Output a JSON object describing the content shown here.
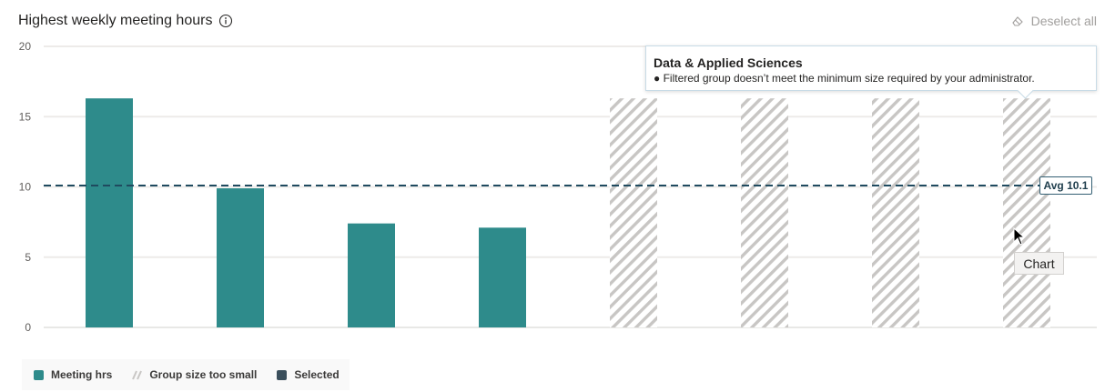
{
  "header": {
    "title": "Highest weekly meeting hours",
    "deselect_label": "Deselect all"
  },
  "tooltip": {
    "title": "Data & Applied Sciences",
    "text": "● Filtered group doesn’t meet the minimum size required by your administrator."
  },
  "avg_label": "Avg 10.1",
  "hover_tip": "Chart",
  "legend": [
    {
      "label": "Meeting hrs",
      "color": "#2e8b8b",
      "pattern": "solid"
    },
    {
      "label": "Group size too small",
      "color": "#c8c6c4",
      "pattern": "hatched"
    },
    {
      "label": "Selected",
      "color": "#3b4f5c",
      "pattern": "solid"
    }
  ],
  "chart_data": {
    "type": "bar",
    "title": "Highest weekly meeting hours",
    "xlabel": "",
    "ylabel": "",
    "ylim": [
      0,
      20
    ],
    "yticks": [
      0,
      5,
      10,
      15,
      20
    ],
    "grid": true,
    "legend_position": "bottom-left",
    "bars": [
      {
        "value": 16.3,
        "status": "meeting"
      },
      {
        "value": 9.9,
        "status": "meeting"
      },
      {
        "value": 7.4,
        "status": "meeting"
      },
      {
        "value": 7.1,
        "status": "meeting"
      },
      {
        "value": 16.3,
        "status": "too_small"
      },
      {
        "value": 16.3,
        "status": "too_small"
      },
      {
        "value": 16.3,
        "status": "too_small"
      },
      {
        "value": 16.3,
        "status": "too_small"
      }
    ],
    "average": 10.1,
    "colors": {
      "meeting": "#2e8b8b",
      "too_small": "#c8c6c4",
      "avg_line": "#1f4a5f"
    }
  }
}
